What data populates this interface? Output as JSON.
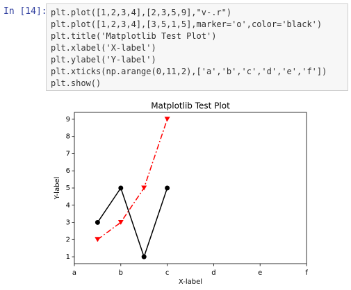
{
  "cell": {
    "prompt": "In [14]:",
    "code": [
      "plt.plot([1,2,3,4],[2,3,5,9],\"v-.r\")",
      "plt.plot([1,2,3,4],[3,5,1,5],marker='o',color='black')",
      "plt.title('Matplotlib Test Plot')",
      "plt.xlabel('X-label')",
      "plt.ylabel('Y-label')",
      "plt.xticks(np.arange(0,11,2),['a','b','c','d','e','f'])",
      "plt.show()"
    ]
  },
  "chart_data": {
    "type": "line",
    "title": "Matplotlib Test Plot",
    "x_label": "X-label",
    "y_label": "Y-label",
    "x": [
      1,
      2,
      3,
      4
    ],
    "series": [
      {
        "color": "#ff0000",
        "linestyle": "-.",
        "marker": "v",
        "values": [
          2,
          3,
          5,
          9
        ]
      },
      {
        "color": "#000000",
        "linestyle": "-",
        "marker": "o",
        "values": [
          3,
          5,
          1,
          5
        ]
      }
    ],
    "xlim": [
      0,
      10
    ],
    "xticks": [
      {
        "value": 0,
        "label": "a"
      },
      {
        "value": 2,
        "label": "b"
      },
      {
        "value": 4,
        "label": "c"
      },
      {
        "value": 6,
        "label": "d"
      },
      {
        "value": 8,
        "label": "e"
      },
      {
        "value": 10,
        "label": "f"
      }
    ],
    "ylim": [
      0.6,
      9.4
    ],
    "yticks": [
      1,
      2,
      3,
      4,
      5,
      6,
      7,
      8,
      9
    ],
    "grid": false
  }
}
